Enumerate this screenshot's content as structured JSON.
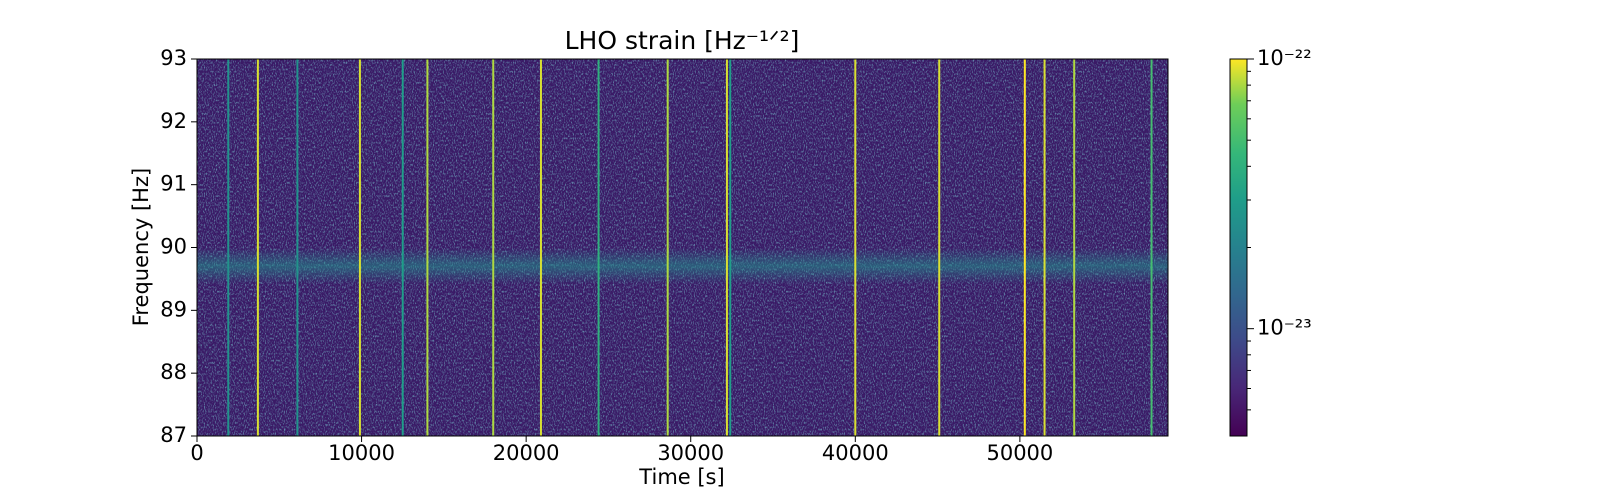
{
  "chart_data": {
    "type": "spectrogram",
    "title": "LHO strain [Hz⁻¹ᐟ²]",
    "xlabel": "Time [s]",
    "ylabel": "Frequency [Hz]",
    "xlim": [
      0,
      59000
    ],
    "xticks": [
      0,
      10000,
      20000,
      30000,
      40000,
      50000
    ],
    "ylim": [
      87,
      93
    ],
    "yticks": [
      87,
      88,
      89,
      90,
      91,
      92,
      93
    ],
    "colormap": "viridis",
    "color_scale": "log",
    "clim": [
      4e-24,
      1e-22
    ],
    "cticks": [
      {
        "value": 1e-23,
        "label": "10⁻²³"
      },
      {
        "value": 1e-22,
        "label": "10⁻²²"
      }
    ],
    "cticks_minor": [
      5e-24,
      6e-24,
      7e-24,
      8e-24,
      9e-24,
      2e-23,
      3e-23,
      4e-23,
      5e-23,
      6e-23,
      7e-23,
      8e-23,
      9e-23
    ],
    "x": [
      1900,
      3700,
      6100,
      9900,
      12500,
      14000,
      18000,
      20900,
      24400,
      28600,
      32200,
      32400,
      40000,
      45100,
      50300,
      51500,
      53300,
      58000
    ],
    "values": [
      2.5e-23,
      9e-23,
      2.5e-23,
      9e-23,
      3e-23,
      8e-23,
      8e-23,
      9e-23,
      4e-23,
      8e-23,
      9e-23,
      3e-23,
      9e-23,
      9e-23,
      1e-22,
      9e-23,
      8e-23,
      5e-23
    ]
  }
}
